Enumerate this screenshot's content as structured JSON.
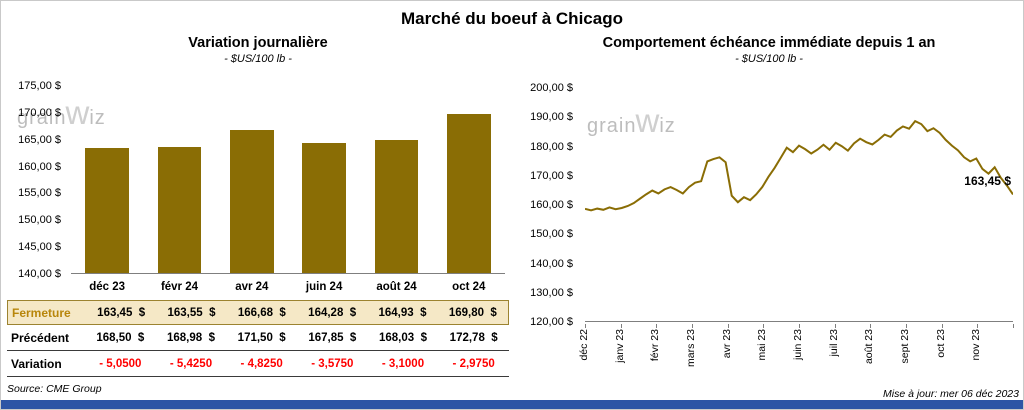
{
  "page": {
    "title": "Marché du boeuf à Chicago",
    "watermark": {
      "pre": "grain",
      "w": "w",
      "post": "iz"
    },
    "footer": {
      "source": "Source: CME Group",
      "updated": "Mise à jour: mer 06 déc 2023"
    }
  },
  "colors": {
    "series": "#8a6d05",
    "fermeture_bg": "#f5e8c6",
    "fermeture_border": "#9c8330",
    "fermeture_label": "#b8860b",
    "variation_text": "#ff0000",
    "footer_bar": "#2d55a5"
  },
  "chart_data": [
    {
      "type": "bar",
      "title": "Variation journalière",
      "subtitle": "- $US/100 lb -",
      "categories": [
        "déc 23",
        "févr 24",
        "avr 24",
        "juin 24",
        "août 24",
        "oct 24"
      ],
      "values": [
        163.45,
        163.55,
        166.68,
        164.28,
        164.93,
        169.8
      ],
      "ylim": [
        140,
        175
      ],
      "ytick_labels": [
        "175,00 $",
        "170,00 $",
        "165,00 $",
        "160,00 $",
        "155,00 $",
        "150,00 $",
        "145,00 $",
        "140,00 $"
      ],
      "bar_color": "#8a6d05",
      "grid": false,
      "legend": "none"
    },
    {
      "type": "line",
      "title": "Comportement échéance immédiate depuis 1 an",
      "subtitle": "- $US/100 lb -",
      "x_labels": [
        "déc 22",
        "janv 23",
        "févr 23",
        "mars 23",
        "avr 23",
        "mai 23",
        "juin 23",
        "juil 23",
        "août 23",
        "sept 23",
        "oct 23",
        "nov 23"
      ],
      "ylim": [
        120,
        200
      ],
      "ytick_labels": [
        "200,00 $",
        "190,00 $",
        "180,00 $",
        "170,00 $",
        "160,00 $",
        "150,00 $",
        "140,00 $",
        "130,00 $",
        "120,00 $"
      ],
      "values": [
        158.5,
        158,
        158.6,
        158.2,
        159,
        158.4,
        158.8,
        159.5,
        160.5,
        162,
        163.5,
        164.8,
        163.8,
        165.2,
        166,
        165,
        163.8,
        166,
        167.5,
        168,
        174.8,
        175.6,
        176.2,
        174.5,
        163,
        160.8,
        162.5,
        161.5,
        163.5,
        166,
        169.5,
        172.5,
        176,
        179.5,
        178,
        180.2,
        179,
        177.5,
        178.8,
        180.5,
        178.8,
        181.2,
        180,
        178.5,
        181,
        182.6,
        181.4,
        180.6,
        182.2,
        184,
        183.2,
        185.4,
        186.8,
        186,
        188.6,
        187.6,
        185.2,
        186.2,
        184.6,
        182.2,
        180.2,
        178.6,
        176.2,
        174.8,
        175.8,
        172.2,
        170.6,
        172.8,
        169.2,
        166.5,
        163.45
      ],
      "end_label": "163,45 $",
      "line_color": "#8a6d05",
      "grid": false,
      "legend": "none"
    }
  ],
  "table": {
    "rows": [
      {
        "name": "fermeture",
        "label": "Fermeture",
        "values": [
          "163,45  $",
          "163,55  $",
          "166,68  $",
          "164,28  $",
          "164,93  $",
          "169,80  $"
        ]
      },
      {
        "name": "precedent",
        "label": "Précédent",
        "values": [
          "168,50  $",
          "168,98  $",
          "171,50  $",
          "167,85  $",
          "168,03  $",
          "172,78  $"
        ]
      },
      {
        "name": "variation",
        "label": "Variation",
        "values": [
          "- 5,0500",
          "- 5,4250",
          "- 4,8250",
          "- 3,5750",
          "- 3,1000",
          "- 2,9750"
        ]
      }
    ]
  }
}
